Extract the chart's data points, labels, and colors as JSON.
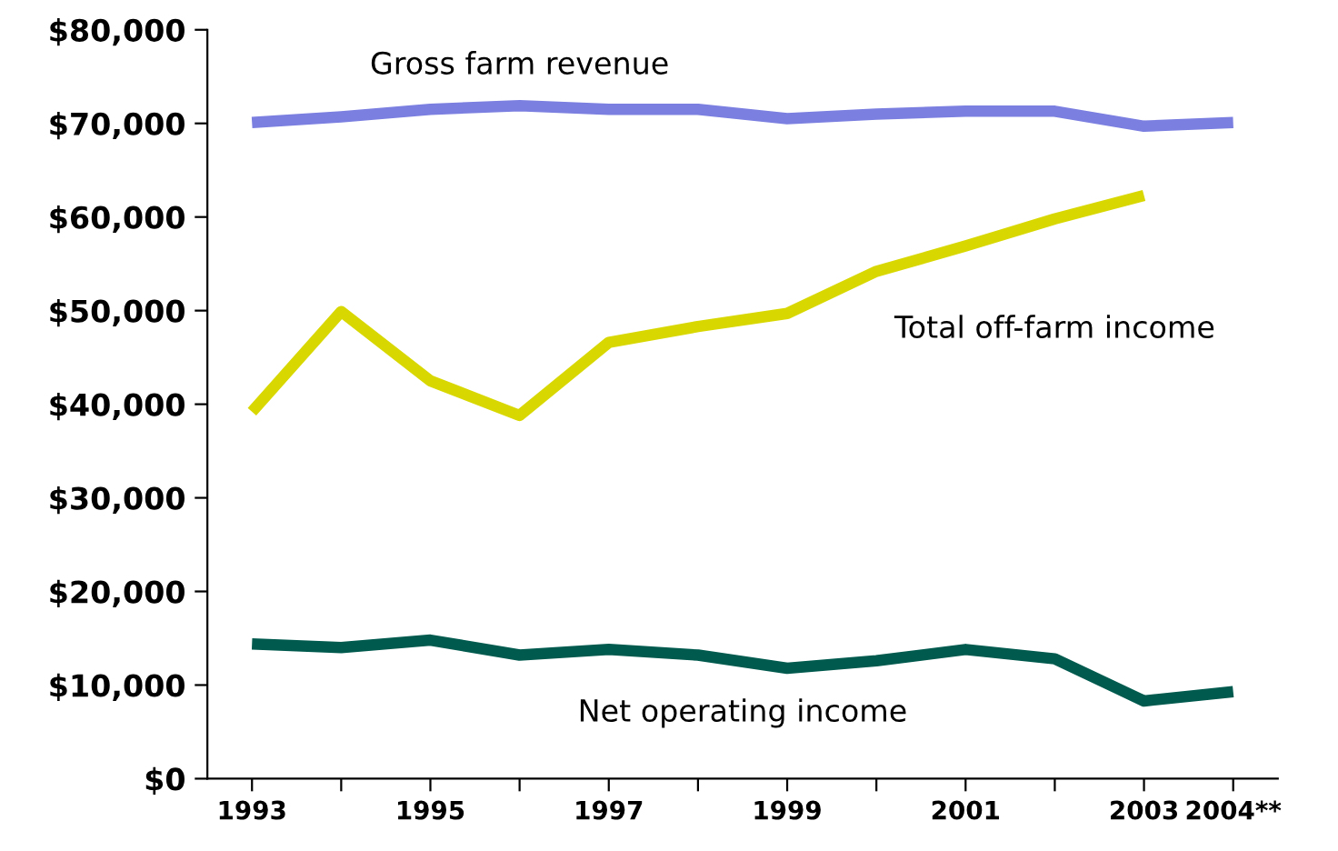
{
  "chart_data": {
    "type": "line",
    "categories": [
      "1993",
      null,
      "1995",
      null,
      "1997",
      null,
      "1999",
      null,
      "2001",
      null,
      "2003",
      "2004**"
    ],
    "series": [
      {
        "name": "Gross farm revenue",
        "color": "#7b7fe0",
        "values": [
          70100,
          70700,
          71500,
          71900,
          71500,
          71500,
          70500,
          71000,
          71300,
          71300,
          69700,
          70100
        ]
      },
      {
        "name": "Total off-farm income",
        "color": "#d8d800",
        "values": [
          39200,
          49900,
          42500,
          38800,
          46600,
          48300,
          49700,
          54200,
          56900,
          59800,
          62300,
          null
        ]
      },
      {
        "name": "Net operating income",
        "color": "#005a4e",
        "values": [
          14400,
          14000,
          14800,
          13200,
          13800,
          13200,
          11800,
          12600,
          13800,
          12800,
          8300,
          9300
        ]
      }
    ],
    "ylim": [
      0,
      80000
    ],
    "yticks": [
      {
        "value": 0,
        "label": "$0"
      },
      {
        "value": 10000,
        "label": "$10,000"
      },
      {
        "value": 20000,
        "label": "$20,000"
      },
      {
        "value": 30000,
        "label": "$30,000"
      },
      {
        "value": 40000,
        "label": "$40,000"
      },
      {
        "value": 50000,
        "label": "$50,000"
      },
      {
        "value": 60000,
        "label": "$60,000"
      },
      {
        "value": 70000,
        "label": "$70,000"
      },
      {
        "value": 80000,
        "label": "$80,000"
      }
    ],
    "grid": false,
    "legend": false,
    "marker": "none",
    "line_style": "solid"
  }
}
